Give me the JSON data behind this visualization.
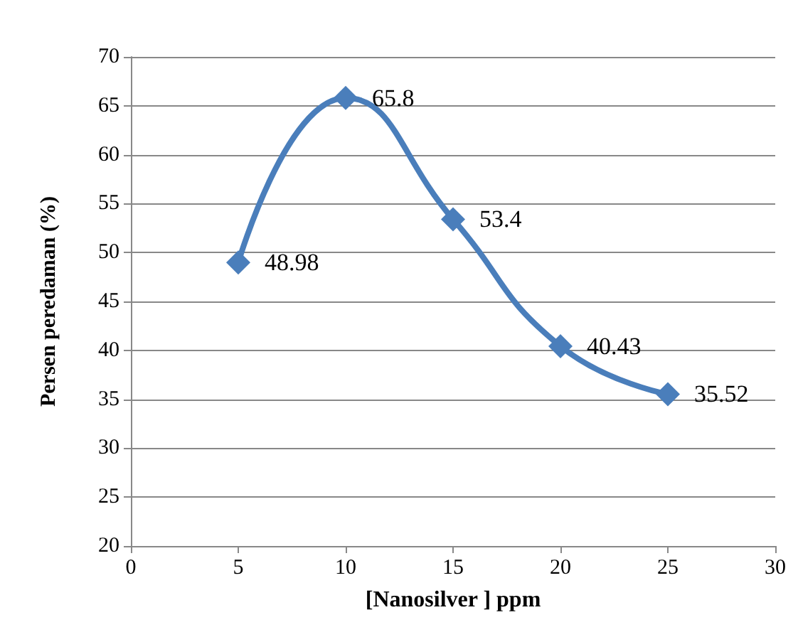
{
  "chart_data": {
    "type": "line",
    "xlabel": "[Nanosilver ] ppm",
    "ylabel": "Persen peredaman (%)",
    "x": [
      5,
      10,
      15,
      20,
      25
    ],
    "series": [
      {
        "color": "#4a7ebb",
        "values": [
          48.98,
          65.8,
          53.4,
          40.43,
          35.52
        ]
      }
    ],
    "xlim": [
      0,
      30
    ],
    "xticks": [
      0,
      5,
      10,
      15,
      20,
      25,
      30
    ],
    "ylim": [
      20,
      70
    ],
    "yticks": [
      20,
      25,
      30,
      35,
      40,
      45,
      50,
      55,
      60,
      65,
      70
    ],
    "grid": "y",
    "marker": "diamond",
    "line_style": "solid",
    "data_labels": true
  }
}
